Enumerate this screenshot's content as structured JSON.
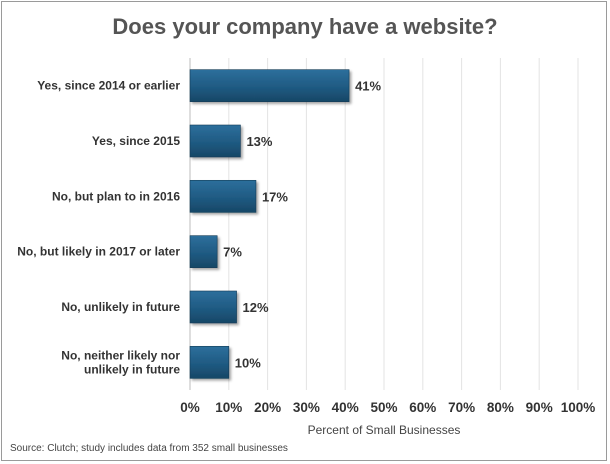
{
  "chart_data": {
    "type": "bar",
    "orientation": "horizontal",
    "title": "Does your company have a website?",
    "categories": [
      [
        "Yes, since 2014 or earlier"
      ],
      [
        "Yes, since 2015"
      ],
      [
        "No, but plan to in 2016"
      ],
      [
        "No, but likely in 2017 or later"
      ],
      [
        "No, unlikely in future"
      ],
      [
        "No, neither likely nor",
        "unlikely in future"
      ]
    ],
    "values": [
      41,
      13,
      17,
      7,
      12,
      10
    ],
    "value_labels": [
      "41%",
      "13%",
      "17%",
      "7%",
      "12%",
      "10%"
    ],
    "xlim": [
      0,
      100
    ],
    "x_ticks": [
      0,
      10,
      20,
      30,
      40,
      50,
      60,
      70,
      80,
      90,
      100
    ],
    "x_tick_labels": [
      "0%",
      "10%",
      "20%",
      "30%",
      "40%",
      "50%",
      "60%",
      "70%",
      "80%",
      "90%",
      "100%"
    ],
    "xlabel": "Percent of Small Businesses",
    "grid": true,
    "bar_color": "#1f5a82",
    "source": "Source: Clutch; study includes data from 352 small businesses"
  }
}
